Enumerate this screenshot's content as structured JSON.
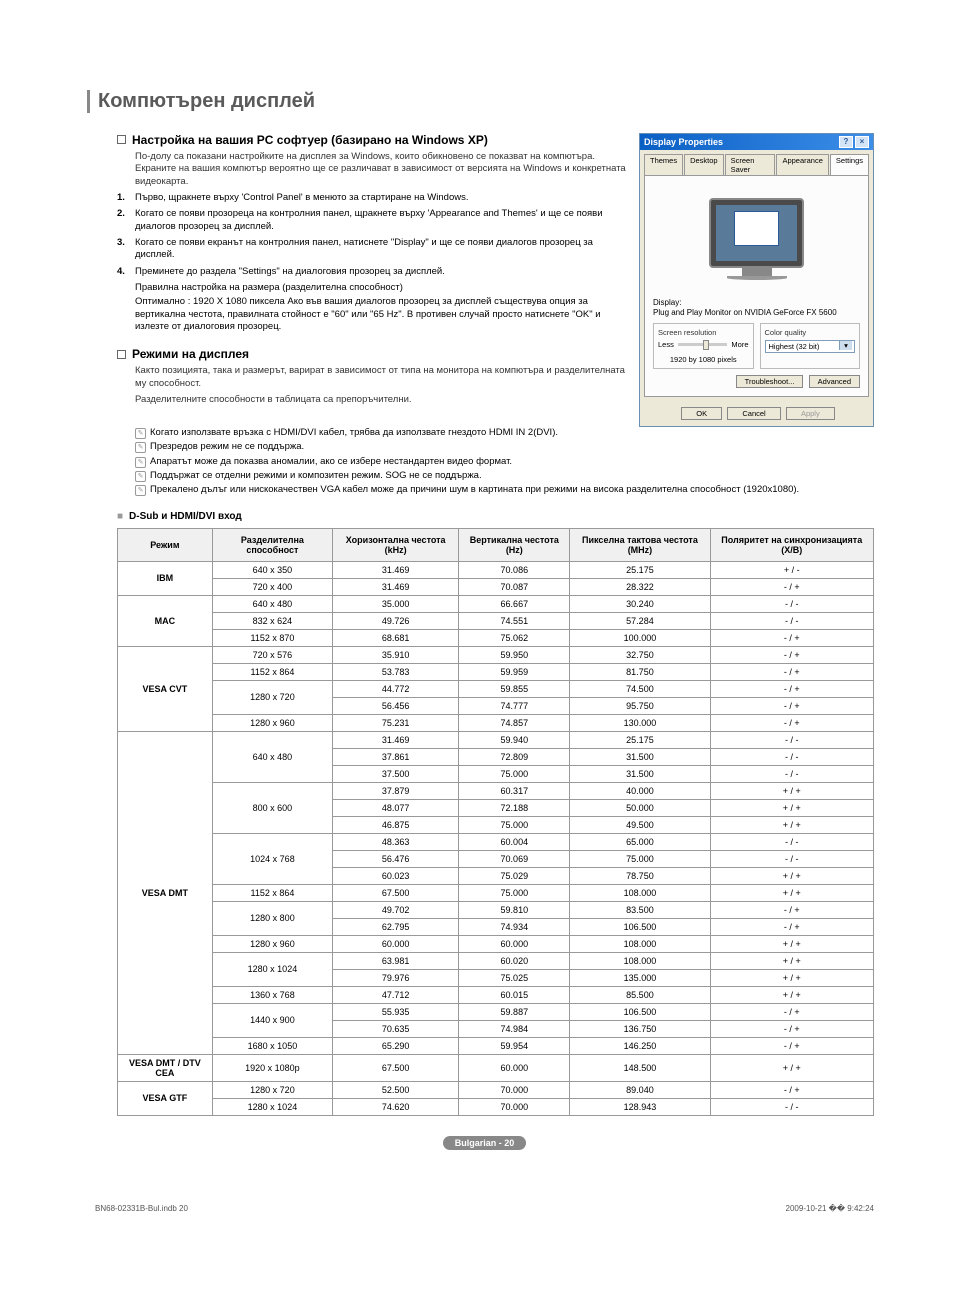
{
  "page_title": "Компютърен дисплей",
  "section1": {
    "title": "Настройка на вашия PC софтуер (базирано на Windows XP)",
    "intro": "По-долу са показани настройките на дисплея за Windows, които обикновено се показват на компютъра. Екраните на вашия компютър вероятно ще се различават в зависимост от версията на Windows и конкретната видеокарта.",
    "steps": [
      "Първо, щракнете върху 'Control Panel' в менюто за стартиране на Windows.",
      "Когато се появи прозореца на контролния панел, щракнете върху 'Appearance and Themes' и ще се появи диалогов прозорец за дисплей.",
      "Когато се появи екранът на контролния панел, натиснете \"Display\" и ще се появи диалогов прозорец за дисплей.",
      "Преминете до раздела \"Settings\" на диалоговия прозорец за дисплей."
    ],
    "step4_sub": [
      "Правилна настройка на размера (разделителна способност)",
      "Оптимално : 1920 X 1080 пиксела Ако във вашия диалогов прозорец за дисплей съществува опция за вертикална честота, правилната стойност е \"60\" или \"65 Hz\". В противен случай просто натиснете \"OK\" и излезте от диалоговия прозорец."
    ]
  },
  "section2": {
    "title": "Режими на дисплея",
    "intro1": "Както позицията, така и размерът, варират в зависимост от типа на монитора на компютъра и разделителната му способност.",
    "intro2": "Разделителните способности в таблицата са препоръчителни.",
    "notes": [
      "Когато използвате връзка с HDMI/DVI кабел, трябва да използвате гнездото HDMI IN 2(DVI).",
      "Презредов режим не се поддържа.",
      "Апаратът може да показва аномалии, ако се избере нестандартен видео формат.",
      "Поддържат се отделни режими и композитен режим. SOG не се поддържа.",
      "Прекалено дълъг или нискокачествен VGA кабел може да причини шум в картината при режими на висока разделителна способност (1920x1080)."
    ]
  },
  "table": {
    "title": "D-Sub и HDMI/DVI вход",
    "headers": [
      "Режим",
      "Разделителна способност",
      "Хоризонтална честота (kHz)",
      "Вертикална честота (Hz)",
      "Пикселна тактова честота (MHz)",
      "Поляритет на синхронизацията (Х/В)"
    ],
    "rows": [
      {
        "mode": "IBM",
        "span": 2,
        "res": "640 x 350",
        "h": "31.469",
        "v": "70.086",
        "p": "25.175",
        "s": "+ / -"
      },
      {
        "res": "720 x 400",
        "h": "31.469",
        "v": "70.087",
        "p": "28.322",
        "s": "- / +"
      },
      {
        "mode": "MAC",
        "span": 3,
        "res": "640 x 480",
        "h": "35.000",
        "v": "66.667",
        "p": "30.240",
        "s": "- / -"
      },
      {
        "res": "832 x 624",
        "h": "49.726",
        "v": "74.551",
        "p": "57.284",
        "s": "- / -"
      },
      {
        "res": "1152 x 870",
        "h": "68.681",
        "v": "75.062",
        "p": "100.000",
        "s": "- / +"
      },
      {
        "mode": "VESA CVT",
        "span": 5,
        "res": "720 x 576",
        "h": "35.910",
        "v": "59.950",
        "p": "32.750",
        "s": "- / +"
      },
      {
        "res": "1152 x 864",
        "h": "53.783",
        "v": "59.959",
        "p": "81.750",
        "s": "- / +"
      },
      {
        "resspan": 2,
        "res": "1280 x 720",
        "h": "44.772",
        "v": "59.855",
        "p": "74.500",
        "s": "- / +"
      },
      {
        "h": "56.456",
        "v": "74.777",
        "p": "95.750",
        "s": "- / +"
      },
      {
        "res": "1280 x 960",
        "h": "75.231",
        "v": "74.857",
        "p": "130.000",
        "s": "- / +"
      },
      {
        "mode": "VESA DMT",
        "span": 19,
        "resspan": 3,
        "res": "640 x 480",
        "h": "31.469",
        "v": "59.940",
        "p": "25.175",
        "s": "- / -"
      },
      {
        "h": "37.861",
        "v": "72.809",
        "p": "31.500",
        "s": "- / -"
      },
      {
        "h": "37.500",
        "v": "75.000",
        "p": "31.500",
        "s": "- / -"
      },
      {
        "resspan": 3,
        "res": "800 x 600",
        "h": "37.879",
        "v": "60.317",
        "p": "40.000",
        "s": "+ / +"
      },
      {
        "h": "48.077",
        "v": "72.188",
        "p": "50.000",
        "s": "+ / +"
      },
      {
        "h": "46.875",
        "v": "75.000",
        "p": "49.500",
        "s": "+ / +"
      },
      {
        "resspan": 3,
        "res": "1024 x 768",
        "h": "48.363",
        "v": "60.004",
        "p": "65.000",
        "s": "- / -"
      },
      {
        "h": "56.476",
        "v": "70.069",
        "p": "75.000",
        "s": "- / -"
      },
      {
        "h": "60.023",
        "v": "75.029",
        "p": "78.750",
        "s": "+ / +"
      },
      {
        "res": "1152 x 864",
        "h": "67.500",
        "v": "75.000",
        "p": "108.000",
        "s": "+ / +"
      },
      {
        "resspan": 2,
        "res": "1280 x 800",
        "h": "49.702",
        "v": "59.810",
        "p": "83.500",
        "s": "- / +"
      },
      {
        "h": "62.795",
        "v": "74.934",
        "p": "106.500",
        "s": "- / +"
      },
      {
        "res": "1280 x 960",
        "h": "60.000",
        "v": "60.000",
        "p": "108.000",
        "s": "+ / +"
      },
      {
        "resspan": 2,
        "res": "1280 x 1024",
        "h": "63.981",
        "v": "60.020",
        "p": "108.000",
        "s": "+ / +"
      },
      {
        "h": "79.976",
        "v": "75.025",
        "p": "135.000",
        "s": "+ / +"
      },
      {
        "res": "1360 x 768",
        "h": "47.712",
        "v": "60.015",
        "p": "85.500",
        "s": "+ / +"
      },
      {
        "resspan": 2,
        "res": "1440 x 900",
        "h": "55.935",
        "v": "59.887",
        "p": "106.500",
        "s": "- / +"
      },
      {
        "h": "70.635",
        "v": "74.984",
        "p": "136.750",
        "s": "- / +"
      },
      {
        "res": "1680 x 1050",
        "h": "65.290",
        "v": "59.954",
        "p": "146.250",
        "s": "- / +"
      },
      {
        "mode": "VESA DMT / DTV CEA",
        "span": 1,
        "res": "1920 x 1080p",
        "h": "67.500",
        "v": "60.000",
        "p": "148.500",
        "s": "+ / +"
      },
      {
        "mode": "VESA GTF",
        "span": 2,
        "res": "1280 x 720",
        "h": "52.500",
        "v": "70.000",
        "p": "89.040",
        "s": "- / +"
      },
      {
        "res": "1280 x 1024",
        "h": "74.620",
        "v": "70.000",
        "p": "128.943",
        "s": "- / -"
      }
    ]
  },
  "dp": {
    "title": "Display Properties",
    "tabs": [
      "Themes",
      "Desktop",
      "Screen Saver",
      "Appearance",
      "Settings"
    ],
    "display_label": "Display:",
    "display_name": "Plug and Play Monitor on NVIDIA GeForce FX 5600",
    "sr_title": "Screen resolution",
    "sr_less": "Less",
    "sr_more": "More",
    "sr_value": "1920 by 1080 pixels",
    "cq_title": "Color quality",
    "cq_value": "Highest (32 bit)",
    "btn_troubleshoot": "Troubleshoot...",
    "btn_advanced": "Advanced",
    "btn_ok": "OK",
    "btn_cancel": "Cancel",
    "btn_apply": "Apply"
  },
  "footer": {
    "badge": "Bulgarian - 20",
    "left": "BN68-02331B-Bul.indb   20",
    "right": "2009-10-21   �� 9:42:24"
  }
}
